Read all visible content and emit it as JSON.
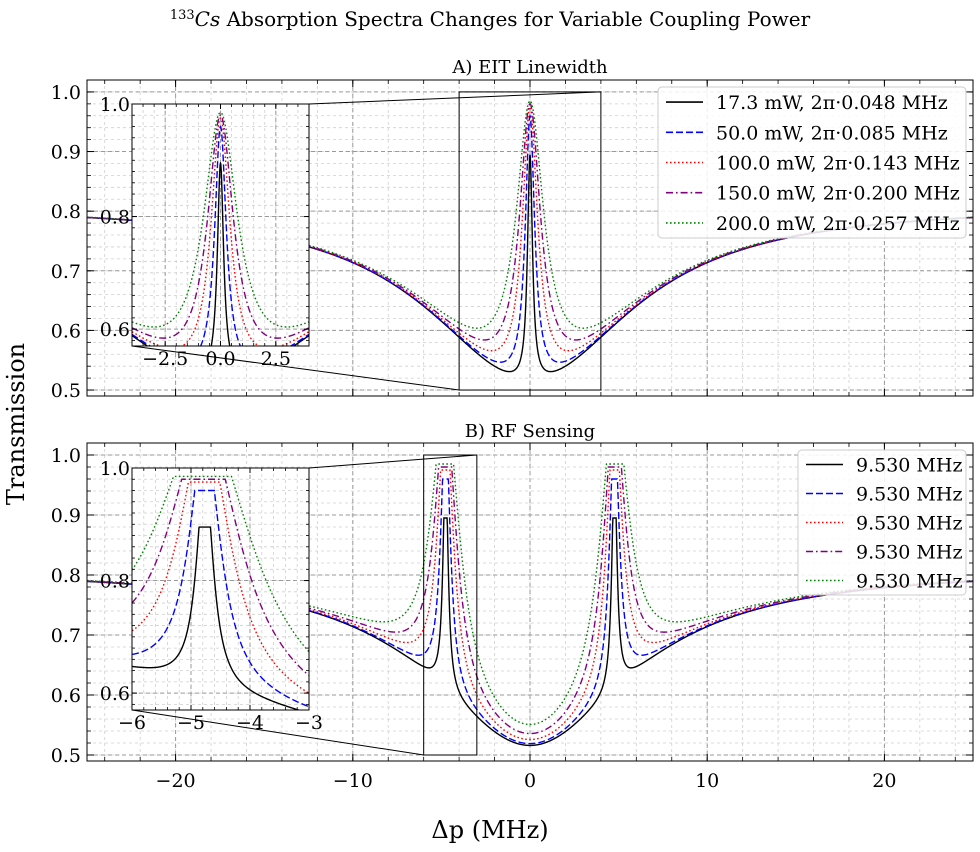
{
  "figure": {
    "title_sup": "133",
    "title_italic": "Cs",
    "title_rest": " Absorption Spectra Changes for Variable Coupling Power",
    "ylabel": "Transmission",
    "xlabel": "Δp (MHz)"
  },
  "colors": {
    "axes": "#000000",
    "grid_major": "#9a9a9a",
    "grid_minor": "#cfcfcf"
  },
  "chart_data": [
    {
      "type": "line",
      "title": "A) EIT Linewidth",
      "xlim": [
        -25,
        25
      ],
      "ylim": [
        0.49,
        1.02
      ],
      "xticks": [
        -20,
        -10,
        0,
        10,
        20
      ],
      "yticks": [
        0.5,
        0.6,
        0.7,
        0.8,
        0.9,
        1.0
      ],
      "grid": true,
      "legend_position": "top-right",
      "profile": {
        "model": "two-level absorption with EIT window",
        "baseline_at_x_edges": 0.81,
        "minimum_transmission": 0.515,
        "peak_x": [
          0
        ]
      },
      "series": [
        {
          "name": "17.3 mW, 2π·0.048 MHz",
          "color": "#000000",
          "dash": "solid",
          "peak": 0.895,
          "width_mhz": 0.17
        },
        {
          "name": "50.0 mW, 2π·0.085 MHz",
          "color": "#0000ff",
          "dash": "dashed",
          "peak": 0.96,
          "width_mhz": 0.32
        },
        {
          "name": "100.0 mW, 2π·0.143 MHz",
          "color": "#ff0000",
          "dash": "dotted",
          "peak": 0.975,
          "width_mhz": 0.52
        },
        {
          "name": "150.0 mW, 2π·0.200 MHz",
          "color": "#800080",
          "dash": "dashdot",
          "peak": 0.98,
          "width_mhz": 0.72
        },
        {
          "name": "200.0 mW, 2π·0.257 MHz",
          "color": "#008000",
          "dash": "dotted",
          "peak": 0.985,
          "width_mhz": 0.95
        }
      ],
      "inset": {
        "xlim": [
          -4,
          4
        ],
        "ylim": [
          0.57,
          1.0
        ],
        "xticks": [
          -2.5,
          0.0,
          2.5
        ],
        "xtick_labels": [
          "−2.5",
          "0.0",
          "2.5"
        ],
        "yticks": [
          0.6,
          0.8,
          1.0
        ],
        "ytick_labels": [
          "0.6",
          "0.8",
          "1.0"
        ]
      }
    },
    {
      "type": "line",
      "title": "B) RF Sensing",
      "xlim": [
        -25,
        25
      ],
      "ylim": [
        0.49,
        1.02
      ],
      "xticks": [
        -20,
        -10,
        0,
        10,
        20
      ],
      "xtick_labels": [
        "−20",
        "−10",
        "0",
        "10",
        "20"
      ],
      "yticks": [
        0.5,
        0.6,
        0.7,
        0.8,
        0.9,
        1.0
      ],
      "grid": true,
      "legend_position": "top-right",
      "profile": {
        "model": "two-level absorption with split EIT peaks",
        "baseline_at_x_edges": 0.81,
        "minimum_transmission": 0.515,
        "peak_x": [
          -4.765,
          4.765
        ]
      },
      "series": [
        {
          "name": "9.530 MHz",
          "color": "#000000",
          "dash": "solid",
          "peak": 0.895,
          "width_mhz": 0.17
        },
        {
          "name": "9.530 MHz",
          "color": "#0000ff",
          "dash": "dashed",
          "peak": 0.96,
          "width_mhz": 0.32
        },
        {
          "name": "9.530 MHz",
          "color": "#ff0000",
          "dash": "dotted",
          "peak": 0.975,
          "width_mhz": 0.52
        },
        {
          "name": "9.530 MHz",
          "color": "#800080",
          "dash": "dashdot",
          "peak": 0.98,
          "width_mhz": 0.72
        },
        {
          "name": "9.530 MHz",
          "color": "#008000",
          "dash": "dotted",
          "peak": 0.985,
          "width_mhz": 0.95
        }
      ],
      "inset": {
        "xlim": [
          -6,
          -3
        ],
        "ylim": [
          0.57,
          1.0
        ],
        "xticks": [
          -6,
          -5,
          -4,
          -3
        ],
        "xtick_labels": [
          "−6",
          "−5",
          "−4",
          "−3"
        ],
        "yticks": [
          0.6,
          0.8,
          1.0
        ],
        "ytick_labels": [
          "0.6",
          "0.8",
          "1.0"
        ]
      }
    }
  ]
}
